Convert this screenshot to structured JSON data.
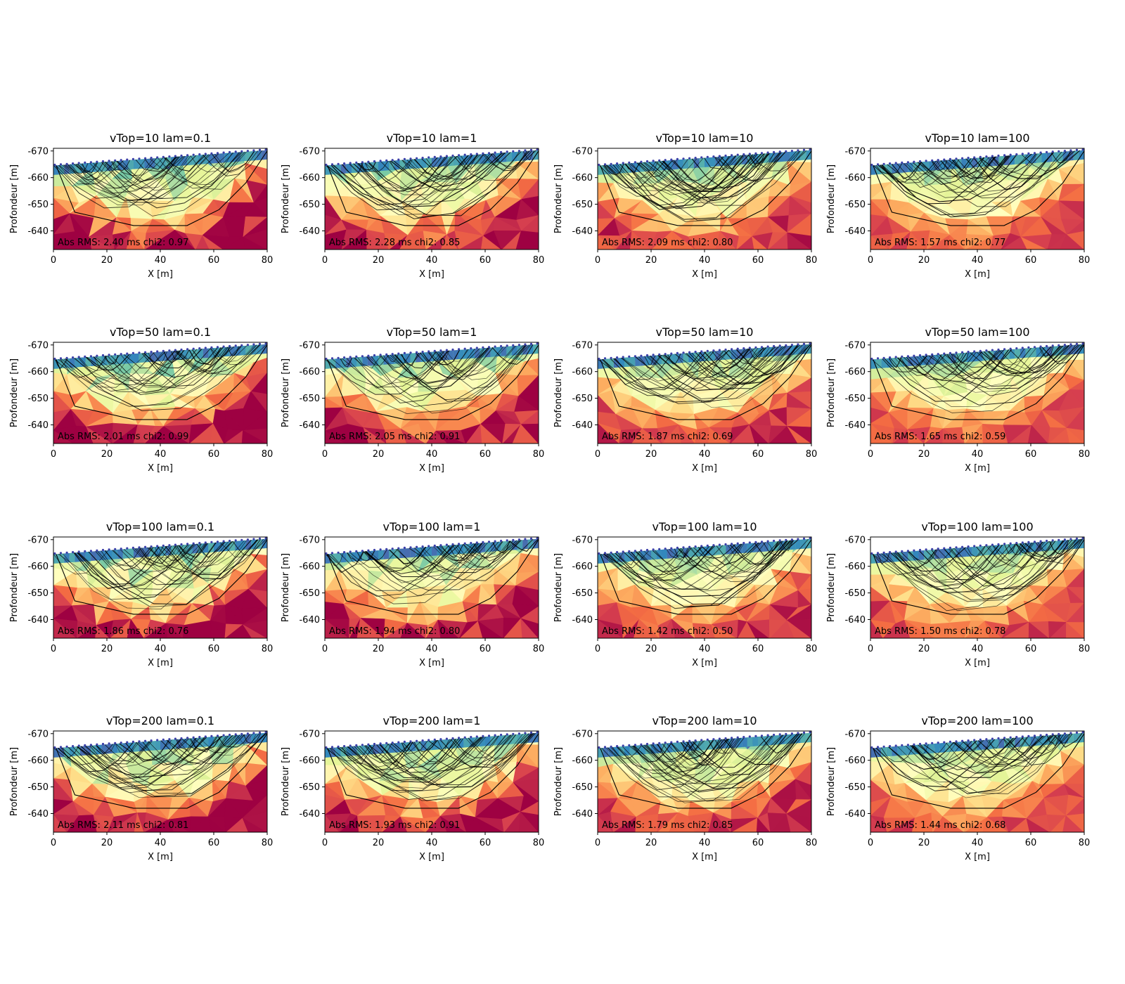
{
  "figure": {
    "panel_count": 16,
    "layout_rows": 4,
    "layout_cols": 4
  },
  "chart_data": [
    {
      "type": "heatmap",
      "title": "vTop=10 lam=0.1",
      "vTop": 10,
      "lam": 0.1,
      "annotation": "Abs RMS: 2.40 ms chi2: 0.97",
      "abs_rms_ms": 2.4,
      "chi2": 0.97,
      "xlabel": "X [m]",
      "ylabel": "Profondeur [m]",
      "xlim": [
        0,
        80
      ],
      "ylim": [
        -633,
        -671
      ],
      "xticks": [
        "0",
        "20",
        "40",
        "60",
        "80"
      ],
      "yticks": [
        "-670",
        "-660",
        "-650",
        "-640"
      ],
      "colormap": "Spectral"
    },
    {
      "type": "heatmap",
      "title": "vTop=10 lam=1",
      "vTop": 10,
      "lam": 1,
      "annotation": "Abs RMS: 2.28 ms chi2: 0.85",
      "abs_rms_ms": 2.28,
      "chi2": 0.85,
      "xlabel": "X [m]",
      "ylabel": "Profondeur [m]",
      "xlim": [
        0,
        80
      ],
      "ylim": [
        -633,
        -671
      ],
      "xticks": [
        "0",
        "20",
        "40",
        "60",
        "80"
      ],
      "yticks": [
        "-670",
        "-660",
        "-650",
        "-640"
      ],
      "colormap": "Spectral"
    },
    {
      "type": "heatmap",
      "title": "vTop=10 lam=10",
      "vTop": 10,
      "lam": 10,
      "annotation": "Abs RMS: 2.09 ms chi2: 0.80",
      "abs_rms_ms": 2.09,
      "chi2": 0.8,
      "xlabel": "X [m]",
      "ylabel": "Profondeur [m]",
      "xlim": [
        0,
        80
      ],
      "ylim": [
        -633,
        -671
      ],
      "xticks": [
        "0",
        "20",
        "40",
        "60",
        "80"
      ],
      "yticks": [
        "-670",
        "-660",
        "-650",
        "-640"
      ],
      "colormap": "Spectral"
    },
    {
      "type": "heatmap",
      "title": "vTop=10 lam=100",
      "vTop": 10,
      "lam": 100,
      "annotation": "Abs RMS: 1.57 ms chi2: 0.77",
      "abs_rms_ms": 1.57,
      "chi2": 0.77,
      "xlabel": "X [m]",
      "ylabel": "Profondeur [m]",
      "xlim": [
        0,
        80
      ],
      "ylim": [
        -633,
        -671
      ],
      "xticks": [
        "0",
        "20",
        "40",
        "60",
        "80"
      ],
      "yticks": [
        "-670",
        "-660",
        "-650",
        "-640"
      ],
      "colormap": "Spectral"
    },
    {
      "type": "heatmap",
      "title": "vTop=50 lam=0.1",
      "vTop": 50,
      "lam": 0.1,
      "annotation": "Abs RMS: 2.01 ms chi2: 0.99",
      "abs_rms_ms": 2.01,
      "chi2": 0.99,
      "xlabel": "X [m]",
      "ylabel": "Profondeur [m]",
      "xlim": [
        0,
        80
      ],
      "ylim": [
        -633,
        -671
      ],
      "xticks": [
        "0",
        "20",
        "40",
        "60",
        "80"
      ],
      "yticks": [
        "-670",
        "-660",
        "-650",
        "-640"
      ],
      "colormap": "Spectral"
    },
    {
      "type": "heatmap",
      "title": "vTop=50 lam=1",
      "vTop": 50,
      "lam": 1,
      "annotation": "Abs RMS: 2.05 ms chi2: 0.91",
      "abs_rms_ms": 2.05,
      "chi2": 0.91,
      "xlabel": "X [m]",
      "ylabel": "Profondeur [m]",
      "xlim": [
        0,
        80
      ],
      "ylim": [
        -633,
        -671
      ],
      "xticks": [
        "0",
        "20",
        "40",
        "60",
        "80"
      ],
      "yticks": [
        "-670",
        "-660",
        "-650",
        "-640"
      ],
      "colormap": "Spectral"
    },
    {
      "type": "heatmap",
      "title": "vTop=50 lam=10",
      "vTop": 50,
      "lam": 10,
      "annotation": "Abs RMS: 1.87 ms chi2: 0.69",
      "abs_rms_ms": 1.87,
      "chi2": 0.69,
      "xlabel": "X [m]",
      "ylabel": "Profondeur [m]",
      "xlim": [
        0,
        80
      ],
      "ylim": [
        -633,
        -671
      ],
      "xticks": [
        "0",
        "20",
        "40",
        "60",
        "80"
      ],
      "yticks": [
        "-670",
        "-660",
        "-650",
        "-640"
      ],
      "colormap": "Spectral"
    },
    {
      "type": "heatmap",
      "title": "vTop=50 lam=100",
      "vTop": 50,
      "lam": 100,
      "annotation": "Abs RMS: 1.65 ms chi2: 0.59",
      "abs_rms_ms": 1.65,
      "chi2": 0.59,
      "xlabel": "X [m]",
      "ylabel": "Profondeur [m]",
      "xlim": [
        0,
        80
      ],
      "ylim": [
        -633,
        -671
      ],
      "xticks": [
        "0",
        "20",
        "40",
        "60",
        "80"
      ],
      "yticks": [
        "-670",
        "-660",
        "-650",
        "-640"
      ],
      "colormap": "Spectral"
    },
    {
      "type": "heatmap",
      "title": "vTop=100 lam=0.1",
      "vTop": 100,
      "lam": 0.1,
      "annotation": "Abs RMS: 1.86 ms chi2: 0.76",
      "abs_rms_ms": 1.86,
      "chi2": 0.76,
      "xlabel": "X [m]",
      "ylabel": "Profondeur [m]",
      "xlim": [
        0,
        80
      ],
      "ylim": [
        -633,
        -671
      ],
      "xticks": [
        "0",
        "20",
        "40",
        "60",
        "80"
      ],
      "yticks": [
        "-670",
        "-660",
        "-650",
        "-640"
      ],
      "colormap": "Spectral"
    },
    {
      "type": "heatmap",
      "title": "vTop=100 lam=1",
      "vTop": 100,
      "lam": 1,
      "annotation": "Abs RMS: 1.94 ms chi2: 0.80",
      "abs_rms_ms": 1.94,
      "chi2": 0.8,
      "xlabel": "X [m]",
      "ylabel": "Profondeur [m]",
      "xlim": [
        0,
        80
      ],
      "ylim": [
        -633,
        -671
      ],
      "xticks": [
        "0",
        "20",
        "40",
        "60",
        "80"
      ],
      "yticks": [
        "-670",
        "-660",
        "-650",
        "-640"
      ],
      "colormap": "Spectral"
    },
    {
      "type": "heatmap",
      "title": "vTop=100 lam=10",
      "vTop": 100,
      "lam": 10,
      "annotation": "Abs RMS: 1.42 ms chi2: 0.50",
      "abs_rms_ms": 1.42,
      "chi2": 0.5,
      "xlabel": "X [m]",
      "ylabel": "Profondeur [m]",
      "xlim": [
        0,
        80
      ],
      "ylim": [
        -633,
        -671
      ],
      "xticks": [
        "0",
        "20",
        "40",
        "60",
        "80"
      ],
      "yticks": [
        "-670",
        "-660",
        "-650",
        "-640"
      ],
      "colormap": "Spectral"
    },
    {
      "type": "heatmap",
      "title": "vTop=100 lam=100",
      "vTop": 100,
      "lam": 100,
      "annotation": "Abs RMS: 1.50 ms chi2: 0.78",
      "abs_rms_ms": 1.5,
      "chi2": 0.78,
      "xlabel": "X [m]",
      "ylabel": "Profondeur [m]",
      "xlim": [
        0,
        80
      ],
      "ylim": [
        -633,
        -671
      ],
      "xticks": [
        "0",
        "20",
        "40",
        "60",
        "80"
      ],
      "yticks": [
        "-670",
        "-660",
        "-650",
        "-640"
      ],
      "colormap": "Spectral"
    },
    {
      "type": "heatmap",
      "title": "vTop=200 lam=0.1",
      "vTop": 200,
      "lam": 0.1,
      "annotation": "Abs RMS: 2.11 ms chi2: 0.81",
      "abs_rms_ms": 2.11,
      "chi2": 0.81,
      "xlabel": "X [m]",
      "ylabel": "Profondeur [m]",
      "xlim": [
        0,
        80
      ],
      "ylim": [
        -633,
        -671
      ],
      "xticks": [
        "0",
        "20",
        "40",
        "60",
        "80"
      ],
      "yticks": [
        "-670",
        "-660",
        "-650",
        "-640"
      ],
      "colormap": "Spectral"
    },
    {
      "type": "heatmap",
      "title": "vTop=200 lam=1",
      "vTop": 200,
      "lam": 1,
      "annotation": "Abs RMS: 1.93 ms chi2: 0.91",
      "abs_rms_ms": 1.93,
      "chi2": 0.91,
      "xlabel": "X [m]",
      "ylabel": "Profondeur [m]",
      "xlim": [
        0,
        80
      ],
      "ylim": [
        -633,
        -671
      ],
      "xticks": [
        "0",
        "20",
        "40",
        "60",
        "80"
      ],
      "yticks": [
        "-670",
        "-660",
        "-650",
        "-640"
      ],
      "colormap": "Spectral"
    },
    {
      "type": "heatmap",
      "title": "vTop=200 lam=10",
      "vTop": 200,
      "lam": 10,
      "annotation": "Abs RMS: 1.79 ms chi2: 0.85",
      "abs_rms_ms": 1.79,
      "chi2": 0.85,
      "xlabel": "X [m]",
      "ylabel": "Profondeur [m]",
      "xlim": [
        0,
        80
      ],
      "ylim": [
        -633,
        -671
      ],
      "xticks": [
        "0",
        "20",
        "40",
        "60",
        "80"
      ],
      "yticks": [
        "-670",
        "-660",
        "-650",
        "-640"
      ],
      "colormap": "Spectral"
    },
    {
      "type": "heatmap",
      "title": "vTop=200 lam=100",
      "vTop": 200,
      "lam": 100,
      "annotation": "Abs RMS: 1.44 ms chi2: 0.68",
      "abs_rms_ms": 1.44,
      "chi2": 0.68,
      "xlabel": "X [m]",
      "ylabel": "Profondeur [m]",
      "xlim": [
        0,
        80
      ],
      "ylim": [
        -633,
        -671
      ],
      "xticks": [
        "0",
        "20",
        "40",
        "60",
        "80"
      ],
      "yticks": [
        "-670",
        "-660",
        "-650",
        "-640"
      ],
      "colormap": "Spectral"
    }
  ],
  "colors": {
    "low_velocity": "#9e0142",
    "red": "#d53e4f",
    "orange": "#f46d43",
    "light_orange": "#fdae61",
    "pale_yellow": "#fee08b",
    "cream": "#ffffbf",
    "light_green": "#e6f598",
    "green": "#abdda4",
    "teal": "#66c2a5",
    "blue": "#3288bd",
    "violet": "#5e4fa2",
    "ray_color": "#000000"
  }
}
